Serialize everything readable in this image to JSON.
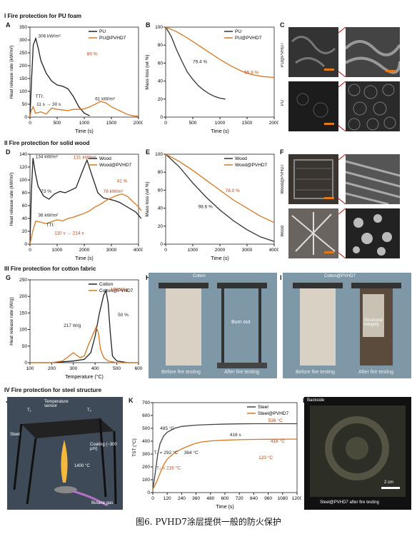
{
  "sections": {
    "s1": "I  Fire protection for PU foam",
    "s2": "II  Fire protection for solid wood",
    "s3": "III  Fire protection for cotton fabric",
    "s4": "IV  Fire protection for steel structure"
  },
  "panel_letters": [
    "A",
    "B",
    "C",
    "D",
    "E",
    "F",
    "G",
    "H",
    "I",
    "J",
    "K",
    "L"
  ],
  "side_labels": {
    "c_top": "PU@PVHD7",
    "c_bot": "PU",
    "f_top": "Wood@PVHD7",
    "f_bot": "Wood"
  },
  "h_photo": {
    "title": "Cotton",
    "burn": "Burn out",
    "before": "Before fire testing",
    "after": "After fire testing"
  },
  "i_photo": {
    "title": "Cotton@PVHD7",
    "integrity": "Structural integrity",
    "before": "Before fire testing",
    "after": "After fire testing"
  },
  "j_labels": {
    "steel": "Steel",
    "temp": "Temperature sensor",
    "coating": "Coating (~300 μm)",
    "flame": "1400 °C",
    "butane": "Butane gas",
    "t1": "T₁",
    "t2": "T₂"
  },
  "l_labels": {
    "backside": "Backside",
    "bottom": "Steel@PVHD7 after fire testing",
    "scale": "2 cm"
  },
  "caption": "图6. PVHD7涂层提供一般的防火保护",
  "chart_data": [
    {
      "id": "A",
      "type": "line",
      "xlabel": "Time (s)",
      "ylabel": "Heat release rate (kW/m²)",
      "xlim": [
        0,
        2000
      ],
      "ylim": [
        0,
        350
      ],
      "xticks": [
        0,
        500,
        1000,
        1500,
        2000
      ],
      "yticks": [
        0,
        50,
        100,
        150,
        200,
        250,
        300,
        350
      ],
      "series": [
        {
          "name": "PU",
          "color": "#222222",
          "x": [
            0,
            30,
            60,
            106,
            150,
            200,
            300,
            400,
            500,
            600,
            700,
            800,
            900,
            1000,
            1100
          ],
          "y": [
            0,
            150,
            280,
            306,
            270,
            220,
            170,
            140,
            125,
            120,
            110,
            80,
            40,
            15,
            5
          ]
        },
        {
          "name": "PU@PVHD7",
          "color": "#d9761f",
          "x": [
            0,
            20,
            60,
            100,
            200,
            300,
            400,
            500,
            600,
            700,
            800,
            900,
            1000,
            1100,
            1200,
            1300,
            1400,
            1500,
            1600,
            1700,
            1800,
            1900,
            2000
          ],
          "y": [
            0,
            25,
            40,
            15,
            20,
            12,
            35,
            30,
            28,
            25,
            30,
            30,
            32,
            40,
            50,
            61,
            55,
            40,
            30,
            20,
            10,
            5,
            3
          ]
        }
      ],
      "annotations": [
        "306 kW/m²",
        "80 %",
        "61 kW/m²",
        "TTI:",
        "11 s → 30 s"
      ]
    },
    {
      "id": "B",
      "type": "line",
      "xlabel": "Time (s)",
      "ylabel": "Mass loss (wt %)",
      "xlim": [
        0,
        2000
      ],
      "ylim": [
        0,
        100
      ],
      "xticks": [
        0,
        500,
        1000,
        1500,
        2000
      ],
      "yticks": [
        0,
        20,
        40,
        60,
        80,
        100
      ],
      "series": [
        {
          "name": "PU",
          "color": "#333333",
          "x": [
            0,
            100,
            200,
            300,
            400,
            500,
            600,
            700,
            800,
            900,
            1000,
            1100
          ],
          "y": [
            100,
            90,
            75,
            62,
            50,
            42,
            35,
            30,
            26,
            23,
            21,
            20
          ]
        },
        {
          "name": "PU@PVHD7",
          "color": "#d9761f",
          "x": [
            0,
            200,
            400,
            600,
            800,
            1000,
            1200,
            1400,
            1600,
            1800,
            2000
          ],
          "y": [
            100,
            95,
            88,
            80,
            72,
            64,
            57,
            51,
            47,
            45,
            44
          ]
        }
      ],
      "annotations": [
        "79.4 %",
        "55.8 %"
      ]
    },
    {
      "id": "D",
      "type": "line",
      "xlabel": "Time (s)",
      "ylabel": "Heat release rate (kW/m²)",
      "xlim": [
        0,
        4000
      ],
      "ylim": [
        0,
        140
      ],
      "xticks": [
        0,
        1000,
        2000,
        3000,
        4000
      ],
      "yticks": [
        0,
        20,
        40,
        60,
        80,
        100,
        120,
        140
      ],
      "series": [
        {
          "name": "Wood",
          "color": "#222222",
          "x": [
            0,
            50,
            110,
            200,
            300,
            500,
            700,
            900,
            1100,
            1300,
            1500,
            1700,
            1900,
            2100,
            2300,
            2500,
            2700,
            2900,
            3100,
            3300,
            3500,
            3700,
            3900,
            4100
          ],
          "y": [
            0,
            80,
            134,
            110,
            90,
            75,
            70,
            78,
            82,
            80,
            84,
            88,
            110,
            131,
            105,
            80,
            72,
            70,
            68,
            65,
            60,
            55,
            50,
            40
          ]
        },
        {
          "name": "Wood@PVHD7",
          "color": "#d9761f",
          "x": [
            0,
            100,
            214,
            400,
            600,
            800,
            1000,
            1200,
            1400,
            1600,
            1800,
            2000,
            2200,
            2400,
            2600,
            2800,
            3000,
            3200,
            3400,
            3600,
            3800,
            4000,
            4100
          ],
          "y": [
            0,
            20,
            36,
            34,
            32,
            35,
            38,
            36,
            40,
            42,
            45,
            48,
            52,
            58,
            62,
            68,
            72,
            76,
            78,
            74,
            66,
            58,
            52
          ]
        }
      ],
      "annotations": [
        "134 kW/m²",
        "131 kW/m²",
        "73 %",
        "41 %",
        "36 kW/m²",
        "78 kW/m²",
        "TTI:",
        "110 s → 214 s"
      ]
    },
    {
      "id": "E",
      "type": "line",
      "xlabel": "Time (s)",
      "ylabel": "Mass loss (wt %)",
      "xlim": [
        0,
        4000
      ],
      "ylim": [
        0,
        100
      ],
      "xticks": [
        0,
        1000,
        2000,
        3000,
        4000
      ],
      "yticks": [
        0,
        20,
        40,
        60,
        80,
        100
      ],
      "series": [
        {
          "name": "Wood",
          "color": "#333333",
          "x": [
            0,
            500,
            1000,
            1500,
            2000,
            2500,
            3000,
            3500,
            4000
          ],
          "y": [
            100,
            86,
            68,
            52,
            38,
            26,
            16,
            8,
            3
          ]
        },
        {
          "name": "Wood@PVHD7",
          "color": "#d9761f",
          "x": [
            0,
            500,
            1000,
            1500,
            2000,
            2500,
            3000,
            3500,
            4000
          ],
          "y": [
            100,
            92,
            82,
            71,
            60,
            49,
            40,
            31,
            24
          ]
        }
      ],
      "annotations": [
        "98.6 %",
        "76.0 %"
      ]
    },
    {
      "id": "G",
      "type": "line",
      "xlabel": "Temperature (°C)",
      "ylabel": "Heat release rate (W/g)",
      "xlim": [
        100,
        600
      ],
      "ylim": [
        0,
        250
      ],
      "xticks": [
        100,
        200,
        300,
        400,
        500,
        600
      ],
      "yticks": [
        0,
        50,
        100,
        150,
        200,
        250
      ],
      "series": [
        {
          "name": "Cotton",
          "color": "#222222",
          "x": [
            100,
            200,
            300,
            350,
            380,
            400,
            420,
            440,
            450,
            460,
            470,
            480,
            500,
            550,
            600
          ],
          "y": [
            0,
            0,
            5,
            10,
            30,
            80,
            150,
            205,
            217,
            180,
            90,
            20,
            5,
            0,
            0
          ]
        },
        {
          "name": "Cotton@PVHD7",
          "color": "#d9761f",
          "x": [
            100,
            200,
            250,
            280,
            300,
            330,
            350,
            370,
            390,
            405,
            415,
            425,
            440,
            460,
            500,
            600
          ],
          "y": [
            0,
            0,
            5,
            20,
            30,
            15,
            20,
            55,
            85,
            108,
            90,
            40,
            15,
            5,
            0,
            0
          ]
        }
      ],
      "annotations": [
        "217 W/g",
        "108 W/g",
        "50 %"
      ]
    },
    {
      "id": "K",
      "type": "line",
      "xlabel": "Time (s)",
      "ylabel": "TST (°C)",
      "xlim": [
        0,
        1200
      ],
      "ylim": [
        0,
        700
      ],
      "xticks": [
        0,
        120,
        240,
        360,
        480,
        600,
        720,
        840,
        960,
        1080,
        1200
      ],
      "yticks": [
        0,
        100,
        200,
        300,
        400,
        500,
        600,
        700
      ],
      "series": [
        {
          "name": "Steel",
          "color": "#444444",
          "x": [
            0,
            20,
            40,
            60,
            90,
            120,
            180,
            240,
            360,
            480,
            600,
            720,
            840,
            960,
            1080,
            1200
          ],
          "y": [
            25,
            150,
            292,
            380,
            440,
            470,
            500,
            515,
            525,
            530,
            533,
            535,
            536,
            536,
            536,
            536
          ]
        },
        {
          "name": "Steel@PVHD7",
          "color": "#d9761f",
          "x": [
            0,
            30,
            60,
            90,
            120,
            180,
            240,
            300,
            360,
            416,
            480,
            600,
            720,
            840,
            960,
            1080,
            1200
          ],
          "y": [
            25,
            80,
            150,
            216,
            260,
            310,
            340,
            364,
            385,
            395,
            402,
            408,
            412,
            414,
            415,
            416,
            416
          ]
        }
      ],
      "annotations": [
        "485 °C",
        "536 °C",
        "416 s",
        "416 °C",
        "T₁ = 292 °C",
        "T₂ = 216 °C",
        "364 °C",
        "120 °C"
      ]
    }
  ]
}
